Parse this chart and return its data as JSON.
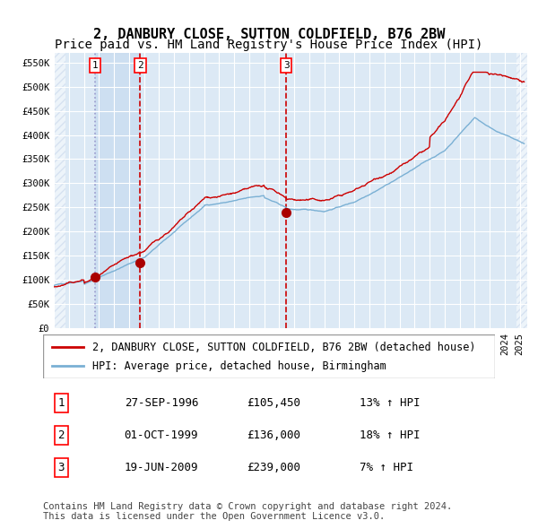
{
  "title": "2, DANBURY CLOSE, SUTTON COLDFIELD, B76 2BW",
  "subtitle": "Price paid vs. HM Land Registry's House Price Index (HPI)",
  "ytick_values": [
    0,
    50000,
    100000,
    150000,
    200000,
    250000,
    300000,
    350000,
    400000,
    450000,
    500000,
    550000
  ],
  "ylim": [
    0,
    570000
  ],
  "xlim_start": 1994.0,
  "xlim_end": 2025.5,
  "plot_bg_color": "#dce9f5",
  "hatch_color": "#c0d0e8",
  "grid_color": "#ffffff",
  "purchase_dates": [
    1996.74,
    1999.75,
    2009.47
  ],
  "purchase_prices": [
    105450,
    136000,
    239000
  ],
  "purchase_labels": [
    "1",
    "2",
    "3"
  ],
  "red_line_color": "#cc0000",
  "blue_line_color": "#7ab0d4",
  "marker_color": "#aa0000",
  "vline_color_1": "#9999cc",
  "vline_color_23": "#cc0000",
  "shade_between_color": "#c8dcf0",
  "legend_line1": "2, DANBURY CLOSE, SUTTON COLDFIELD, B76 2BW (detached house)",
  "legend_line2": "HPI: Average price, detached house, Birmingham",
  "table_data": [
    [
      "1",
      "27-SEP-1996",
      "£105,450",
      "13% ↑ HPI"
    ],
    [
      "2",
      "01-OCT-1999",
      "£136,000",
      "18% ↑ HPI"
    ],
    [
      "3",
      "19-JUN-2009",
      "£239,000",
      "7% ↑ HPI"
    ]
  ],
  "footnote": "Contains HM Land Registry data © Crown copyright and database right 2024.\nThis data is licensed under the Open Government Licence v3.0.",
  "title_fontsize": 11,
  "subtitle_fontsize": 10,
  "tick_fontsize": 7.5,
  "legend_fontsize": 8.5,
  "table_fontsize": 9,
  "footnote_fontsize": 7.5
}
